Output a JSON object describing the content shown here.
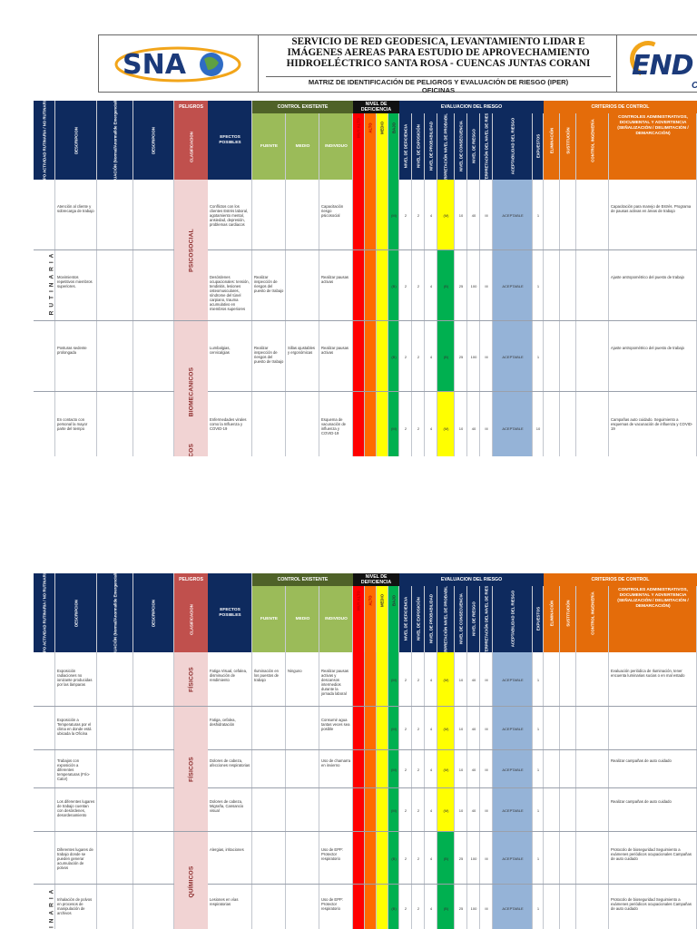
{
  "header": {
    "title_lines": [
      "SERVICIO DE RED GEODESICA, LEVANTAMIENTO LIDAR E",
      "IMÁGENES AEREAS PARA ESTUDIO DE APROVECHAMIENTO",
      "HIDROELÉCTRICO SANTA ROSA - CUENCAS JUNTAS CORANI"
    ],
    "subtitle_lines": [
      "MATRIZ DE IDENTIFICACIÓN DE PELIGROS Y EVALUACIÓN DE RIESGO (IPER)",
      "OFICINAS"
    ],
    "logo_left_text": "SNA",
    "logo_right_text": "END",
    "logo_right_sub": "CO"
  },
  "colors": {
    "navy": "#0e2a5e",
    "peligros_red": "#c0504d",
    "peligros_pink": "#f1d3d3",
    "control_olive": "#4f6228",
    "control_green": "#9bbb59",
    "nivel_black": "#111111",
    "criterios_orange": "#e46c0a",
    "risk_red": "#ff0000",
    "risk_orange": "#ff6a00",
    "risk_yellow": "#ffff00",
    "risk_green": "#00b050",
    "acceptability_blue": "#95b3d7"
  },
  "table_headers": {
    "tipo_actividad": "TIPO ACTIVIDAD RUTINARIA / NO RUTINARIA",
    "descripcion": "DESCRIPCION",
    "condicion": "CONDICIÓN DE EVALUACIÓN (Normal/Anormal/de Emergencia/Mantenimiento)",
    "descripcion2": "DESCRIPCION",
    "peligros": "PELIGROS",
    "clasificacion": "CLASIFICACION",
    "efectos": "EFECTOS POSIBLES",
    "control_existente": "CONTROL EXISTENTE",
    "fuente": "FUENTE",
    "medio": "MEDIO",
    "individuo": "INDIVIDUO",
    "nivel_deficiencia": "NIVEL DE DEFICIENCIA",
    "muy_alto": "MUY ALTO",
    "alto": "ALTO",
    "medio_lvl": "MEDIO",
    "bajo": "BAJO",
    "evaluacion": "EVALUACION DEL RIESGO",
    "eval_cols": [
      "NIVEL DE DEFICIENCIA",
      "NIVEL DE EXPOSICIÓN",
      "NIVEL DE PROBABILIDAD",
      "INTERPRETACIÓN NIVEL DE PROBABILIDAD",
      "NIVEL DE CONSECUENCIA",
      "NIVEL DE RIESGO",
      "INTERPRETACIÓN DEL NIVEL DE RIESGO",
      "ACEPTABILIDAD DEL RIESGO",
      "EXPUESTOS"
    ],
    "criterios": "CRITERIOS DE CONTROL",
    "eliminacion": "ELIMINACIÓN",
    "sustitucion": "SUSTITUCIÓN",
    "control_ingenieria": "CONTROL INGENIERÍA",
    "controles_admin": "CONTROLES ADMINISTRATIVOS, DOCUMENTAL Y ADVERTENCIA (SEÑALIZACIÓN / DELIMITACIÓN / DEMARCACIÓN)"
  },
  "rutinaria_label": "RUTINARIA",
  "sheet1": {
    "groups": [
      {
        "label": "PSICOSOCIAL",
        "row_start": 0,
        "row_end": 2
      },
      {
        "label": "BIOMECANICOS",
        "row_start": 2,
        "row_end": 4
      },
      {
        "label": "BIOLÓGICOS",
        "row_start": 4,
        "row_end": 5
      }
    ],
    "rows": [
      {
        "h": 78,
        "desc": "Atención al cliente y sobrecarga de trabajo",
        "efectos": "Conflictos con los clientes Estrés laboral, agotamiento mental, ansiedad, depresión, problemas cardiacos",
        "fuente": "",
        "medio": "",
        "individuo": "Capacitación riesgo psicosocial",
        "nd": "2",
        "ne": "2",
        "np": "4",
        "interp": "(M)",
        "interp_color": "#ffff00",
        "nc": "10",
        "nr": "40",
        "inr": "III",
        "acept": "ACEPTABLE",
        "exp": "1",
        "admin": "Capacitación para manejo de Estrés. Programa de pausas activas en áreas de trabajo"
      },
      {
        "h": 78,
        "desc": "Movimientos repetitivos miembros superiores.",
        "efectos": "Desórdenes ocupacionales: tensión, tendinitis, lesiones osteomusculares, síndrome del túnel carpiano, trauma acumulativo en miembros superiores",
        "fuente": "Realizar inspección de riesgos del puesto de trabajo",
        "medio": "",
        "individuo": "Realizar pausas activas",
        "nd": "2",
        "ne": "2",
        "np": "4",
        "interp": "(B)",
        "interp_color": "#00b050",
        "nc": "25",
        "nr": "100",
        "inr": "III",
        "acept": "ACEPTABLE",
        "exp": "1",
        "admin": "Ajuste antropométrico del puesto de trabajo"
      },
      {
        "h": 78,
        "desc": "Posturas sedente prolongada",
        "efectos": "Lumbalgias, cervicalgias",
        "fuente": "Realizar inspección de riesgos del puesto de trabajo",
        "medio": "Sillas ajustables y ergonómicas",
        "individuo": "Realizar pausas activas",
        "nd": "2",
        "ne": "2",
        "np": "4",
        "interp": "(B)",
        "interp_color": "#00b050",
        "nc": "25",
        "nr": "100",
        "inr": "III",
        "acept": "ACEPTABLE",
        "exp": "1",
        "admin": "Ajuste antropométrico del puesto de trabajo"
      },
      {
        "h": 79,
        "desc": "En contacto con personal la mayor parte del tiempo",
        "efectos": "Enfermedades virales como la Influenza y COVID-19",
        "fuente": "",
        "medio": "",
        "individuo": "Esquema de vacunación de influenza y COVID-19",
        "nd": "2",
        "ne": "2",
        "np": "4",
        "interp": "(M)",
        "interp_color": "#ffff00",
        "nc": "10",
        "nr": "40",
        "inr": "III",
        "acept": "ACEPTABLE",
        "exp": "10",
        "admin": "Campañas auto cuidado. Seguimiento a esquemas de vacunación de influenza y COVID-19"
      },
      {
        "h": 0,
        "desc": "",
        "efectos": "",
        "fuente": "",
        "medio": "",
        "individuo": "",
        "nd": "",
        "ne": "",
        "np": "",
        "interp": "",
        "interp_color": "#ffffff",
        "nc": "",
        "nr": "",
        "inr": "",
        "acept": "",
        "exp": "",
        "admin": ""
      }
    ]
  },
  "sheet2": {
    "groups": [
      {
        "label": "FÍSICOS",
        "row_start": 0,
        "row_end": 1
      },
      {
        "label": "FÍSICOS",
        "row_start": 1,
        "row_end": 4
      },
      {
        "label": "QUÍMICOS",
        "row_start": 4,
        "row_end": 6
      }
    ],
    "rows": [
      {
        "h": 60,
        "desc": "Exposición radiaciones no ionizante producidas por las lámparas",
        "efectos": "Fatiga Visual, cefalea, disminución de rendimiento",
        "fuente": "Iluminación en los puestos de trabajo",
        "medio": "Ninguno",
        "individuo": "Realizar pausas activas y descansos intermedios durante la jornada laboral",
        "nd": "2",
        "ne": "2",
        "np": "4",
        "interp": "(M)",
        "interp_color": "#ffff00",
        "nc": "10",
        "nr": "40",
        "inr": "III",
        "acept": "ACEPTABLE",
        "exp": "1",
        "admin": "Evaluación periódica de Iluminación, tener encuenta luminarias sucias o en mal estado"
      },
      {
        "h": 48,
        "desc": "Exposición a Temperaturas por el clima en donde está ubicada la Oficina",
        "efectos": "Fatiga, cefalea, deshidratación",
        "fuente": "",
        "medio": "",
        "individuo": "Consumir agua tantas veces sea posible",
        "nd": "2",
        "ne": "2",
        "np": "4",
        "interp": "(M)",
        "interp_color": "#ffff00",
        "nc": "10",
        "nr": "40",
        "inr": "III",
        "acept": "ACEPTABLE",
        "exp": "1",
        "admin": ""
      },
      {
        "h": 42,
        "desc": "Trabajos con exposición a diferentes temperaturas (Frío-Calor)",
        "efectos": "Dolores de cabeza, afecciones respiratorias",
        "fuente": "",
        "medio": "",
        "individuo": "Uso de chamarra en invierno",
        "nd": "2",
        "ne": "2",
        "np": "4",
        "interp": "(M)",
        "interp_color": "#ffff00",
        "nc": "10",
        "nr": "40",
        "inr": "III",
        "acept": "ACEPTABLE",
        "exp": "1",
        "admin": "Realizar campañas de auto cuidado"
      },
      {
        "h": 48,
        "desc": "Los diferentes lugares de trabajo cuentan con desórdenes, desordenamiento",
        "efectos": "Dolores de cabeza, Migraña, Cansancio visual",
        "fuente": "",
        "medio": "",
        "individuo": "",
        "nd": "2",
        "ne": "2",
        "np": "4",
        "interp": "(M)",
        "interp_color": "#ffff00",
        "nc": "10",
        "nr": "40",
        "inr": "III",
        "acept": "ACEPTABLE",
        "exp": "1",
        "admin": "Realizar campañas de auto cuidado"
      },
      {
        "h": 58,
        "desc": "Diferentes lugares de trabajo donde se pueden generar acumulación de polvos",
        "efectos": "Alergias, irritaciones",
        "fuente": "",
        "medio": "",
        "individuo": "Uso de EPP: Protector respiratorio",
        "nd": "2",
        "ne": "2",
        "np": "4",
        "interp": "(B)",
        "interp_color": "#00b050",
        "nc": "25",
        "nr": "100",
        "inr": "III",
        "acept": "ACEPTABLE",
        "exp": "1",
        "admin": "Protocolo de bioseguridad Seguimiento a exámenes periódicos ocupacionales Campañas de auto cuidado"
      },
      {
        "h": 52,
        "desc": "Inhalación de polvos en procesos de manipulación de archivos",
        "efectos": "Lesiones en vías respiratorias",
        "fuente": "",
        "medio": "",
        "individuo": "Uso de EPP: Protector respiratorio",
        "nd": "2",
        "ne": "2",
        "np": "4",
        "interp": "(B)",
        "interp_color": "#00b050",
        "nc": "25",
        "nr": "100",
        "inr": "III",
        "acept": "ACEPTABLE",
        "exp": "1",
        "admin": "Protocolo de bioseguridad Seguimiento a exámenes periódicos ocupacionales Campañas de auto cuidado"
      }
    ]
  }
}
